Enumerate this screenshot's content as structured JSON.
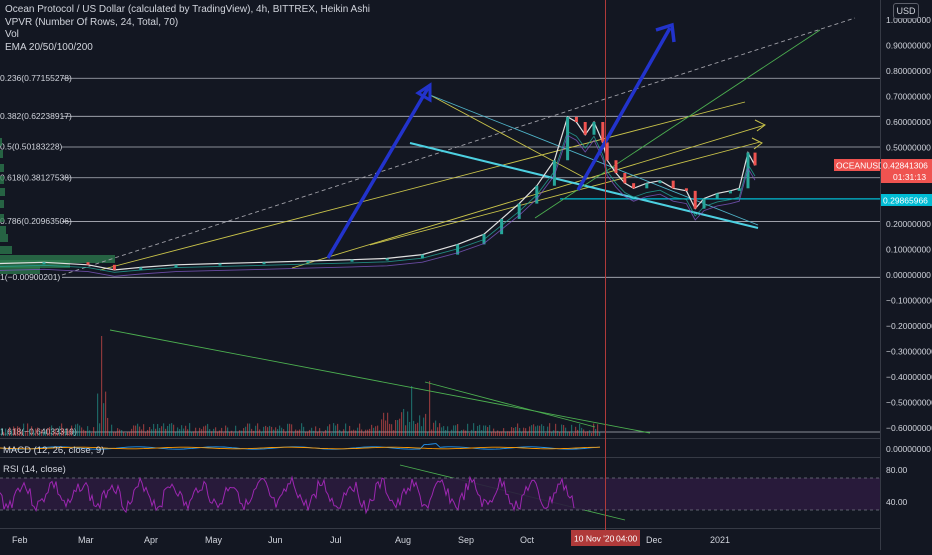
{
  "legend": {
    "title": "Ocean Protocol / US Dollar (calculated by TradingView), 4h, BITTREX, Heikin Ashi",
    "vpvr": "VPVR (Number Of Rows, 24, Total, 70)",
    "vol": "Vol",
    "ema": "EMA 20/50/100/200"
  },
  "currency": "USD",
  "chart_data": [
    {
      "type": "line",
      "description_role": "main-price-chart",
      "symbol": "OCEANUSD",
      "current_price_label": "0.42841306",
      "countdown": "01:31:13",
      "horizontal_level_label": "0.29865966",
      "y_ticks": [
        "1.00000000",
        "0.90000000",
        "0.80000000",
        "0.70000000",
        "0.60000000",
        "0.50000000",
        "0.40000000",
        "0.30000000",
        "0.20000000",
        "0.10000000",
        "0.00000000",
        "−0.10000000",
        "−0.20000000",
        "−0.30000000",
        "−0.40000000",
        "−0.50000000",
        "−0.60000000"
      ],
      "ylim": [
        -0.65,
        1.04
      ],
      "fib_levels": [
        {
          "label": "0.236(0.77155278)",
          "value": 0.77155278
        },
        {
          "label": "0.382(0.62238917)",
          "value": 0.62238917
        },
        {
          "label": "0.5(0.50183228)",
          "value": 0.50183228
        },
        {
          "label": "0.618(0.38127538)",
          "value": 0.38127538
        },
        {
          "label": "0.786(0.20963506)",
          "value": 0.20963506
        },
        {
          "label": "1(−0.00900201)",
          "value": -0.00900201
        },
        {
          "label": "1.618(−0.64033319)",
          "value": -0.64033319
        }
      ],
      "x_ticks": [
        "Feb",
        "Mar",
        "Apr",
        "May",
        "Jun",
        "Jul",
        "Aug",
        "Sep",
        "Oct",
        "Dec",
        "2021"
      ],
      "crosshair_time_label": "10 Nov '20",
      "crosshair_time": "04:00",
      "price_series": [
        {
          "x": 0,
          "y": 0.045
        },
        {
          "x": 0.05,
          "y": 0.05
        },
        {
          "x": 0.1,
          "y": 0.04
        },
        {
          "x": 0.13,
          "y": 0.02
        },
        {
          "x": 0.16,
          "y": 0.03
        },
        {
          "x": 0.2,
          "y": 0.04
        },
        {
          "x": 0.25,
          "y": 0.045
        },
        {
          "x": 0.3,
          "y": 0.05
        },
        {
          "x": 0.35,
          "y": 0.055
        },
        {
          "x": 0.4,
          "y": 0.06
        },
        {
          "x": 0.44,
          "y": 0.065
        },
        {
          "x": 0.48,
          "y": 0.08
        },
        {
          "x": 0.52,
          "y": 0.12
        },
        {
          "x": 0.55,
          "y": 0.16
        },
        {
          "x": 0.57,
          "y": 0.22
        },
        {
          "x": 0.59,
          "y": 0.28
        },
        {
          "x": 0.61,
          "y": 0.35
        },
        {
          "x": 0.63,
          "y": 0.45
        },
        {
          "x": 0.645,
          "y": 0.62
        },
        {
          "x": 0.655,
          "y": 0.6
        },
        {
          "x": 0.665,
          "y": 0.55
        },
        {
          "x": 0.675,
          "y": 0.6
        },
        {
          "x": 0.685,
          "y": 0.52
        },
        {
          "x": 0.69,
          "y": 0.45
        },
        {
          "x": 0.7,
          "y": 0.4
        },
        {
          "x": 0.71,
          "y": 0.36
        },
        {
          "x": 0.72,
          "y": 0.34
        },
        {
          "x": 0.735,
          "y": 0.36
        },
        {
          "x": 0.75,
          "y": 0.37
        },
        {
          "x": 0.765,
          "y": 0.34
        },
        {
          "x": 0.78,
          "y": 0.33
        },
        {
          "x": 0.79,
          "y": 0.26
        },
        {
          "x": 0.8,
          "y": 0.3
        },
        {
          "x": 0.815,
          "y": 0.32
        },
        {
          "x": 0.83,
          "y": 0.33
        },
        {
          "x": 0.84,
          "y": 0.34
        },
        {
          "x": 0.85,
          "y": 0.48
        },
        {
          "x": 0.858,
          "y": 0.43
        }
      ]
    },
    {
      "type": "line",
      "description_role": "macd-pane",
      "label": "MACD (12, 26, close, 9)",
      "y_ticks": [
        "0.00000000"
      ]
    },
    {
      "type": "line",
      "description_role": "rsi-pane",
      "label": "RSI (14, close)",
      "y_ticks": [
        "80.00",
        "40.00"
      ],
      "ylim": [
        0,
        100
      ]
    }
  ]
}
